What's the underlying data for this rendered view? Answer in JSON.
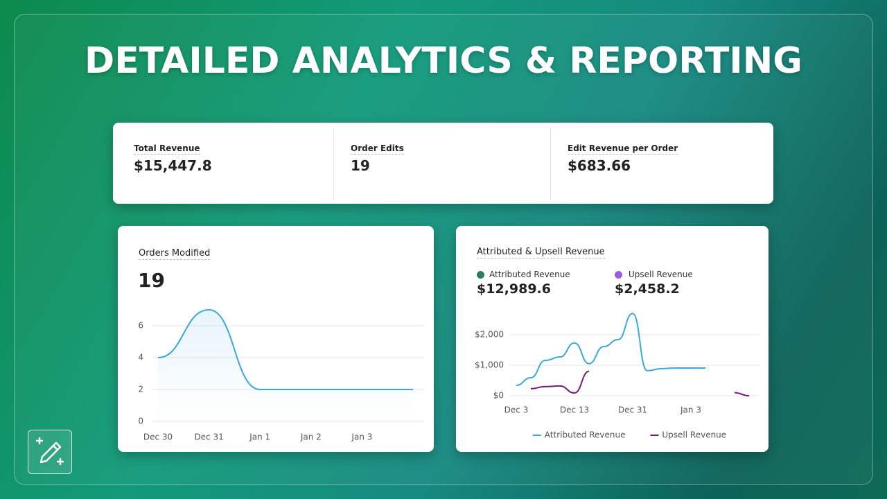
{
  "title": "DETAILED ANALYTICS & REPORTING",
  "kpis": [
    {
      "label": "Total Revenue",
      "value": "$15,447.8"
    },
    {
      "label": "Order Edits",
      "value": "19"
    },
    {
      "label": "Edit Revenue per Order",
      "value": "$683.66"
    }
  ],
  "chart_data": [
    {
      "type": "line",
      "title": "Orders Modified",
      "total": "19",
      "categories": [
        "Dec 30",
        "Dec 31",
        "Jan 1",
        "Jan 2",
        "Jan 3",
        null
      ],
      "values": [
        4,
        7,
        2,
        2,
        2,
        2
      ],
      "color": "#3aa8e0",
      "ylim": [
        0,
        8
      ],
      "yticks": [
        0,
        2,
        4,
        6
      ],
      "grid": true
    },
    {
      "type": "line",
      "title": "Attributed & Upsell Revenue",
      "summary": [
        {
          "label": "Attributed Revenue",
          "value": "$12,989.6",
          "color": "#2e7d5b"
        },
        {
          "label": "Upsell Revenue",
          "value": "$2,458.2",
          "color": "#9b5de5"
        }
      ],
      "categories": [
        "Dec 3",
        null,
        null,
        null,
        "Dec 13",
        null,
        null,
        null,
        "Dec 31",
        null,
        null,
        null,
        "Jan 3",
        null,
        null,
        null,
        null
      ],
      "series": [
        {
          "name": "Attributed Revenue",
          "color": "#3aa8e0",
          "values": [
            340,
            590,
            1160,
            1270,
            1730,
            1050,
            1610,
            1840,
            2700,
            820,
            890,
            910,
            910,
            910,
            null,
            null,
            null
          ]
        },
        {
          "name": "Upsell Revenue",
          "color": "#7a1a6e",
          "values": [
            null,
            230,
            300,
            320,
            90,
            800,
            null,
            null,
            null,
            null,
            null,
            null,
            null,
            null,
            null,
            100,
            0
          ]
        }
      ],
      "ylim": [
        0,
        3000
      ],
      "yticks": [
        {
          "value": 0,
          "label": "$0"
        },
        {
          "value": 1000,
          "label": "$1,000"
        },
        {
          "value": 2000,
          "label": "$2,000"
        }
      ],
      "grid": true,
      "legend": "bottom"
    }
  ]
}
